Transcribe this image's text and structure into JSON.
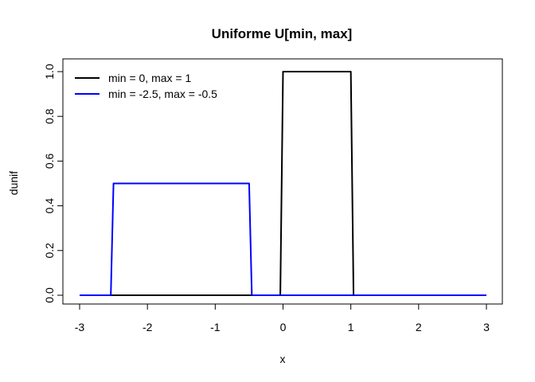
{
  "chart_data": {
    "type": "line",
    "title": "Uniforme U[min, max]",
    "xlabel": "x",
    "ylabel": "dunif",
    "xlim": [
      -3,
      3
    ],
    "ylim": [
      0,
      1
    ],
    "x_ticks": [
      -3,
      -2,
      -1,
      0,
      1,
      2,
      3
    ],
    "x_tick_labels": [
      "-3",
      "-2",
      "-1",
      "0",
      "1",
      "2",
      "3"
    ],
    "y_ticks": [
      0,
      0.2,
      0.4,
      0.6,
      0.8,
      1
    ],
    "y_tick_labels": [
      "0.0",
      "0.2",
      "0.4",
      "0.6",
      "0.8",
      "1.0"
    ],
    "grid": false,
    "legend_position": "top-left",
    "series": [
      {
        "name": "min = 0, max = 1",
        "color": "#000000",
        "x": [
          -3,
          -0.04,
          0.0,
          1.0,
          1.04,
          3
        ],
        "y": [
          0,
          0,
          1,
          1,
          0,
          0
        ]
      },
      {
        "name": "min = -2.5, max = -0.5",
        "color": "#0000ff",
        "x": [
          -3,
          -2.54,
          -2.5,
          -0.5,
          -0.46,
          3
        ],
        "y": [
          0,
          0,
          0.5,
          0.5,
          0,
          0
        ]
      }
    ]
  }
}
